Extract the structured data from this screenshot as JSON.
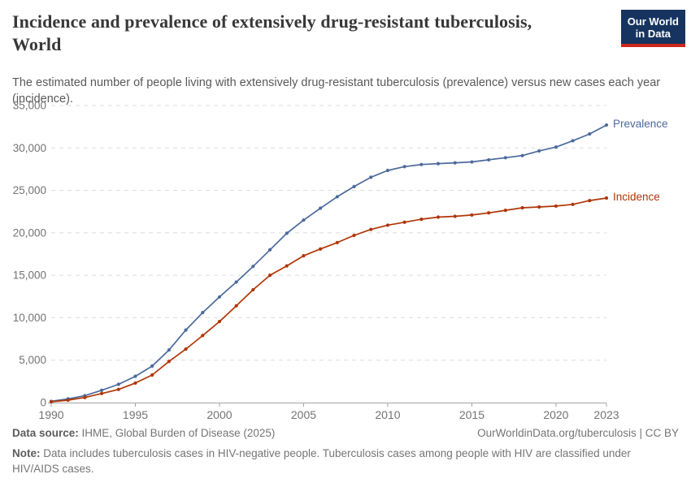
{
  "header": {
    "title_line1": "Incidence and prevalence of extensively drug-resistant tuberculosis,",
    "title_line2": "World",
    "subtitle": "The estimated number of people living with extensively drug-resistant tuberculosis (prevalence) versus new cases each year (incidence)."
  },
  "logo": {
    "line1": "Our World",
    "line2": "in Data"
  },
  "colors": {
    "prevalence": "#4C6A9C",
    "incidence": "#B13507",
    "grid": "#dcdcdc",
    "axis": "#a3a3a3",
    "tick_text": "#737373",
    "logo_bg": "#16345F",
    "logo_stripe": "#CE261B"
  },
  "chart_data": {
    "type": "line",
    "title": "Incidence and prevalence of extensively drug-resistant tuberculosis, World",
    "xlabel": "",
    "ylabel": "",
    "xlim": [
      1990,
      2023
    ],
    "ylim": [
      0,
      35000
    ],
    "grid": "horizontal-dashed",
    "legend_position": "end-of-line-labels",
    "x": [
      1990,
      1991,
      1992,
      1993,
      1994,
      1995,
      1996,
      1997,
      1998,
      1999,
      2000,
      2001,
      2002,
      2003,
      2004,
      2005,
      2006,
      2007,
      2008,
      2009,
      2010,
      2011,
      2012,
      2013,
      2014,
      2015,
      2016,
      2017,
      2018,
      2019,
      2020,
      2021,
      2022,
      2023
    ],
    "series": [
      {
        "name": "Prevalence",
        "color": "#4C6A9C",
        "values": [
          150,
          430,
          820,
          1450,
          2150,
          3100,
          4300,
          6200,
          8550,
          10600,
          12450,
          14200,
          16050,
          18000,
          19950,
          21500,
          22900,
          24250,
          25450,
          26550,
          27350,
          27800,
          28050,
          28150,
          28250,
          28350,
          28600,
          28850,
          29100,
          29650,
          30100,
          30850,
          31650,
          32700
        ]
      },
      {
        "name": "Incidence",
        "color": "#B13507",
        "values": [
          100,
          290,
          600,
          1070,
          1550,
          2300,
          3250,
          4850,
          6300,
          7900,
          9550,
          11400,
          13300,
          15000,
          16100,
          17300,
          18100,
          18850,
          19700,
          20400,
          20900,
          21250,
          21600,
          21850,
          21950,
          22100,
          22350,
          22650,
          22950,
          23050,
          23150,
          23350,
          23800,
          24100
        ]
      }
    ],
    "y_ticks": [
      0,
      5000,
      10000,
      15000,
      20000,
      25000,
      30000,
      35000
    ],
    "y_tick_labels": [
      "0",
      "5,000",
      "10,000",
      "15,000",
      "20,000",
      "25,000",
      "30,000",
      "35,000"
    ],
    "x_ticks": [
      1990,
      1995,
      2000,
      2005,
      2010,
      2015,
      2020,
      2023
    ],
    "x_tick_labels": [
      "1990",
      "1995",
      "2000",
      "2005",
      "2010",
      "2015",
      "2020",
      "2023"
    ]
  },
  "footer": {
    "source_label": "Data source:",
    "source_value": "IHME, Global Burden of Disease (2025)",
    "credit": "OurWorldinData.org/tuberculosis | CC BY",
    "note_label": "Note:",
    "note_text": "Data includes tuberculosis cases in HIV-negative people. Tuberculosis cases among people with HIV are classified under HIV/AIDS cases."
  }
}
